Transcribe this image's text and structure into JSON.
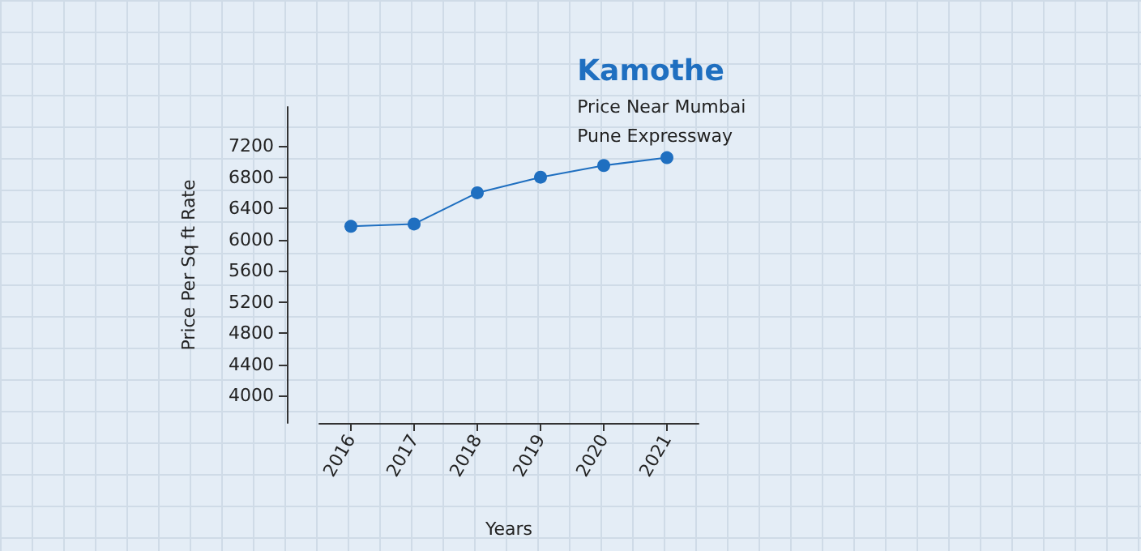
{
  "chart_data": {
    "type": "line",
    "title": "Kamothe",
    "subtitle": "Price Near Mumbai\nPune Expressway",
    "xlabel": "Years",
    "ylabel": "Price Per Sq ft Rate",
    "categories": [
      "2016",
      "2017",
      "2018",
      "2019",
      "2020",
      "2021"
    ],
    "series": [
      {
        "color": "#1f6fc0",
        "values": [
          6170,
          6200,
          6600,
          6800,
          6950,
          7050
        ]
      }
    ],
    "ylim": [
      3650,
      7700
    ],
    "yticks": [
      4000,
      4400,
      4800,
      5200,
      5600,
      6000,
      6400,
      6800,
      7200
    ],
    "grid": false,
    "marker": "circle",
    "line_style": "solid"
  }
}
